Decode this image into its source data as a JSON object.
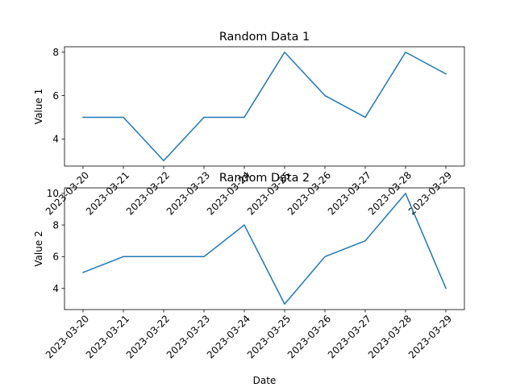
{
  "chart_data": [
    {
      "type": "line",
      "title": "Random Data 1",
      "xlabel": "",
      "ylabel": "Value 1",
      "x": [
        "2023-03-20",
        "2023-03-21",
        "2023-03-22",
        "2023-03-23",
        "2023-03-24",
        "2023-03-25",
        "2023-03-26",
        "2023-03-27",
        "2023-03-28",
        "2023-03-29"
      ],
      "x_tick_labels": [
        "2023-03-20",
        "2023-03-21",
        "2023-03-22",
        "2023-03-23",
        "2023-03-24",
        "2023-03-25",
        "2023-03-26",
        "2023-03-27",
        "2023-03-28",
        "2023-03-29"
      ],
      "series": [
        {
          "values": [
            5,
            5,
            3,
            5,
            5,
            8,
            6,
            5,
            8,
            7
          ],
          "color": "#1f77b4"
        }
      ],
      "ylim": [
        2.75,
        8.25
      ],
      "yticks": [
        4,
        6,
        8
      ],
      "grid": false
    },
    {
      "type": "line",
      "title": "Random Data 2",
      "xlabel": "Date",
      "ylabel": "Value 2",
      "x": [
        "2023-03-20",
        "2023-03-21",
        "2023-03-22",
        "2023-03-23",
        "2023-03-24",
        "2023-03-25",
        "2023-03-26",
        "2023-03-27",
        "2023-03-28",
        "2023-03-29"
      ],
      "x_tick_labels": [
        "2023-03-20",
        "2023-03-21",
        "2023-03-22",
        "2023-03-23",
        "2023-03-24",
        "2023-03-25",
        "2023-03-26",
        "2023-03-27",
        "2023-03-28",
        "2023-03-29"
      ],
      "series": [
        {
          "values": [
            5,
            6,
            6,
            6,
            8,
            3,
            6,
            7,
            10,
            4
          ],
          "color": "#1f77b4"
        }
      ],
      "ylim": [
        2.65,
        10.35
      ],
      "yticks": [
        4,
        6,
        8,
        10
      ],
      "grid": false
    }
  ]
}
